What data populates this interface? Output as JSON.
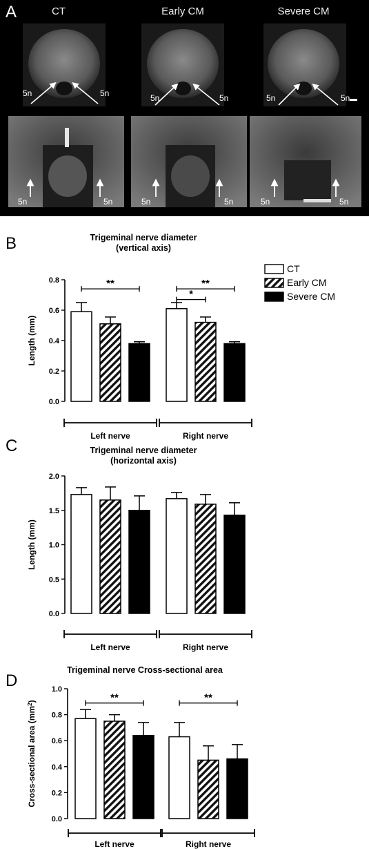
{
  "panel_a": {
    "label": "A",
    "columns": [
      "CT",
      "Early CM",
      "Severe CM"
    ],
    "nerve_label": "5n"
  },
  "legend": {
    "entries": [
      {
        "name": "CT",
        "fill": "#ffffff"
      },
      {
        "name": "Early CM",
        "fill": "hatch"
      },
      {
        "name": "Severe CM",
        "fill": "#000000"
      }
    ]
  },
  "chart_data": [
    {
      "type": "bar",
      "panel_label": "B",
      "title": [
        "Trigeminal nerve diameter",
        "(vertical axis)"
      ],
      "ylabel": "Length (mm)",
      "ylim": [
        0,
        0.8
      ],
      "yticks": [
        0.0,
        0.2,
        0.4,
        0.6,
        0.8
      ],
      "ytick_labels": [
        "0.0",
        "0.2",
        "0.4",
        "0.6",
        "0.8"
      ],
      "groups": [
        "Left nerve",
        "Right nerve"
      ],
      "series": [
        {
          "name": "CT",
          "values": [
            0.59,
            0.61
          ],
          "errors": [
            0.06,
            0.04
          ]
        },
        {
          "name": "Early CM",
          "values": [
            0.51,
            0.52
          ],
          "errors": [
            0.045,
            0.035
          ]
        },
        {
          "name": "Severe CM",
          "values": [
            0.38,
            0.38
          ],
          "errors": [
            0.012,
            0.012
          ]
        }
      ],
      "significance": [
        {
          "group": 0,
          "from": 0,
          "to": 2,
          "label": "**",
          "y": 0.74
        },
        {
          "group": 1,
          "from": 0,
          "to": 2,
          "label": "**",
          "y": 0.74
        },
        {
          "group": 1,
          "from": 0,
          "to": 1,
          "label": "*",
          "y": 0.67
        }
      ]
    },
    {
      "type": "bar",
      "panel_label": "C",
      "title": [
        "Trigeminal nerve diameter",
        "(horizontal axis)"
      ],
      "ylabel": "Length (mm)",
      "ylim": [
        0,
        2.0
      ],
      "yticks": [
        0.0,
        0.5,
        1.0,
        1.5,
        2.0
      ],
      "ytick_labels": [
        "0.0",
        "0.5",
        "1.0",
        "1.5",
        "2.0"
      ],
      "groups": [
        "Left nerve",
        "Right nerve"
      ],
      "series": [
        {
          "name": "CT",
          "values": [
            1.73,
            1.67
          ],
          "errors": [
            0.1,
            0.09
          ]
        },
        {
          "name": "Early CM",
          "values": [
            1.65,
            1.59
          ],
          "errors": [
            0.19,
            0.14
          ]
        },
        {
          "name": "Severe CM",
          "values": [
            1.5,
            1.43
          ],
          "errors": [
            0.21,
            0.18
          ]
        }
      ],
      "significance": []
    },
    {
      "type": "bar",
      "panel_label": "D",
      "title": [
        "Trigeminal nerve Cross-sectional area"
      ],
      "ylabel": "Cross-sectional area (mm",
      "ylabel_sup": "2",
      "ylabel_end": ")",
      "ylim": [
        0,
        1.0
      ],
      "yticks": [
        0.0,
        0.2,
        0.4,
        0.6,
        0.8,
        1.0
      ],
      "ytick_labels": [
        "0.0",
        "0.2",
        "0.4",
        "0.6",
        "0.8",
        "1.0"
      ],
      "groups": [
        "Left nerve",
        "Right nerve"
      ],
      "series": [
        {
          "name": "CT",
          "values": [
            0.77,
            0.63
          ],
          "errors": [
            0.07,
            0.11
          ]
        },
        {
          "name": "Early CM",
          "values": [
            0.75,
            0.45
          ],
          "errors": [
            0.05,
            0.11
          ]
        },
        {
          "name": "Severe CM",
          "values": [
            0.64,
            0.46
          ],
          "errors": [
            0.1,
            0.11
          ]
        }
      ],
      "significance": [
        {
          "group": 0,
          "from": 0,
          "to": 2,
          "label": "**",
          "y": 0.89
        },
        {
          "group": 1,
          "from": 0,
          "to": 2,
          "label": "**",
          "y": 0.89
        }
      ]
    }
  ]
}
